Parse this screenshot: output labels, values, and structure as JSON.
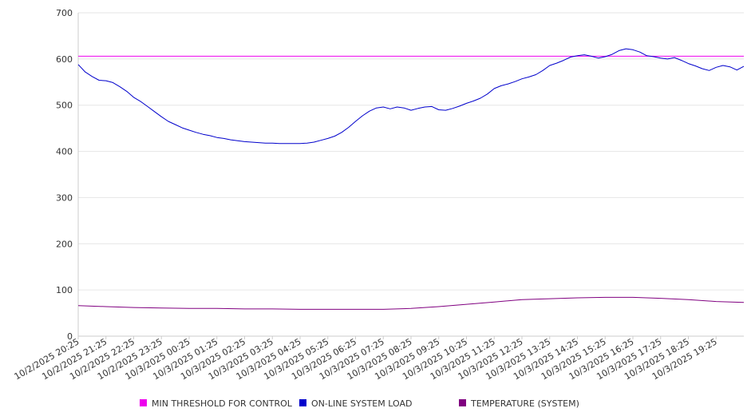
{
  "chart_data": {
    "type": "line",
    "title": "",
    "xlabel": "",
    "ylabel": "",
    "ylim": [
      0,
      700
    ],
    "yticks": [
      0,
      100,
      200,
      300,
      400,
      500,
      600,
      700
    ],
    "grid": true,
    "legend_position": "bottom",
    "x_range": [
      "10/2/2025 20:25",
      "10/3/2025 20:25"
    ],
    "x_tick_labels": [
      "10/2/2025 20:25",
      "10/2/2025 21:25",
      "10/2/2025 22:25",
      "10/2/2025 23:25",
      "10/3/2025 00:25",
      "10/3/2025 01:25",
      "10/3/2025 02:25",
      "10/3/2025 03:25",
      "10/3/2025 04:25",
      "10/3/2025 05:25",
      "10/3/2025 06:25",
      "10/3/2025 07:25",
      "10/3/2025 08:25",
      "10/3/2025 09:25",
      "10/3/2025 10:25",
      "10/3/2025 11:25",
      "10/3/2025 12:25",
      "10/3/2025 13:25",
      "10/3/2025 14:25",
      "10/3/2025 15:25",
      "10/3/2025 16:25",
      "10/3/2025 17:25",
      "10/3/2025 18:25",
      "10/3/2025 19:25"
    ],
    "series": [
      {
        "name": "MIN THRESHOLD FOR CONTROL",
        "color": "#ee00ee",
        "points": [
          [
            "10/2/2025 20:25",
            606
          ],
          [
            "10/3/2025 20:25",
            606
          ]
        ]
      },
      {
        "name": "ON-LINE SYSTEM LOAD",
        "color": "#0000cc",
        "points": [
          [
            "10/2/2025 20:25",
            588
          ],
          [
            "10/2/2025 20:40",
            572
          ],
          [
            "10/2/2025 20:55",
            562
          ],
          [
            "10/2/2025 21:10",
            554
          ],
          [
            "10/2/2025 21:25",
            553
          ],
          [
            "10/2/2025 21:40",
            549
          ],
          [
            "10/2/2025 21:55",
            540
          ],
          [
            "10/2/2025 22:10",
            530
          ],
          [
            "10/2/2025 22:25",
            517
          ],
          [
            "10/2/2025 22:40",
            508
          ],
          [
            "10/2/2025 22:55",
            497
          ],
          [
            "10/2/2025 23:10",
            486
          ],
          [
            "10/2/2025 23:25",
            475
          ],
          [
            "10/2/2025 23:40",
            465
          ],
          [
            "10/2/2025 23:55",
            458
          ],
          [
            "10/3/2025 00:10",
            451
          ],
          [
            "10/3/2025 00:25",
            446
          ],
          [
            "10/3/2025 00:40",
            441
          ],
          [
            "10/3/2025 00:55",
            437
          ],
          [
            "10/3/2025 01:10",
            434
          ],
          [
            "10/3/2025 01:25",
            430
          ],
          [
            "10/3/2025 01:40",
            428
          ],
          [
            "10/3/2025 01:55",
            425
          ],
          [
            "10/3/2025 02:10",
            423
          ],
          [
            "10/3/2025 02:25",
            421
          ],
          [
            "10/3/2025 02:40",
            420
          ],
          [
            "10/3/2025 02:55",
            419
          ],
          [
            "10/3/2025 03:10",
            418
          ],
          [
            "10/3/2025 03:25",
            418
          ],
          [
            "10/3/2025 03:40",
            417
          ],
          [
            "10/3/2025 03:55",
            417
          ],
          [
            "10/3/2025 04:10",
            417
          ],
          [
            "10/3/2025 04:25",
            417
          ],
          [
            "10/3/2025 04:40",
            418
          ],
          [
            "10/3/2025 04:55",
            420
          ],
          [
            "10/3/2025 05:10",
            424
          ],
          [
            "10/3/2025 05:25",
            428
          ],
          [
            "10/3/2025 05:40",
            433
          ],
          [
            "10/3/2025 05:55",
            441
          ],
          [
            "10/3/2025 06:10",
            452
          ],
          [
            "10/3/2025 06:25",
            465
          ],
          [
            "10/3/2025 06:40",
            477
          ],
          [
            "10/3/2025 06:55",
            487
          ],
          [
            "10/3/2025 07:10",
            494
          ],
          [
            "10/3/2025 07:25",
            496
          ],
          [
            "10/3/2025 07:40",
            492
          ],
          [
            "10/3/2025 07:55",
            496
          ],
          [
            "10/3/2025 08:10",
            494
          ],
          [
            "10/3/2025 08:25",
            489
          ],
          [
            "10/3/2025 08:40",
            493
          ],
          [
            "10/3/2025 08:55",
            496
          ],
          [
            "10/3/2025 09:10",
            497
          ],
          [
            "10/3/2025 09:25",
            490
          ],
          [
            "10/3/2025 09:40",
            489
          ],
          [
            "10/3/2025 09:55",
            493
          ],
          [
            "10/3/2025 10:10",
            498
          ],
          [
            "10/3/2025 10:25",
            504
          ],
          [
            "10/3/2025 10:40",
            509
          ],
          [
            "10/3/2025 10:55",
            515
          ],
          [
            "10/3/2025 11:10",
            524
          ],
          [
            "10/3/2025 11:25",
            536
          ],
          [
            "10/3/2025 11:40",
            542
          ],
          [
            "10/3/2025 11:55",
            546
          ],
          [
            "10/3/2025 12:10",
            551
          ],
          [
            "10/3/2025 12:25",
            557
          ],
          [
            "10/3/2025 12:40",
            561
          ],
          [
            "10/3/2025 12:55",
            566
          ],
          [
            "10/3/2025 13:10",
            575
          ],
          [
            "10/3/2025 13:25",
            586
          ],
          [
            "10/3/2025 13:40",
            591
          ],
          [
            "10/3/2025 13:55",
            597
          ],
          [
            "10/3/2025 14:10",
            604
          ],
          [
            "10/3/2025 14:25",
            607
          ],
          [
            "10/3/2025 14:40",
            609
          ],
          [
            "10/3/2025 14:55",
            606
          ],
          [
            "10/3/2025 15:10",
            602
          ],
          [
            "10/3/2025 15:25",
            605
          ],
          [
            "10/3/2025 15:40",
            610
          ],
          [
            "10/3/2025 15:55",
            618
          ],
          [
            "10/3/2025 16:10",
            622
          ],
          [
            "10/3/2025 16:25",
            620
          ],
          [
            "10/3/2025 16:40",
            615
          ],
          [
            "10/3/2025 16:55",
            607
          ],
          [
            "10/3/2025 17:10",
            605
          ],
          [
            "10/3/2025 17:25",
            602
          ],
          [
            "10/3/2025 17:40",
            600
          ],
          [
            "10/3/2025 17:55",
            603
          ],
          [
            "10/3/2025 18:10",
            597
          ],
          [
            "10/3/2025 18:25",
            590
          ],
          [
            "10/3/2025 18:40",
            585
          ],
          [
            "10/3/2025 18:55",
            579
          ],
          [
            "10/3/2025 19:10",
            575
          ],
          [
            "10/3/2025 19:25",
            582
          ],
          [
            "10/3/2025 19:40",
            586
          ],
          [
            "10/3/2025 19:55",
            583
          ],
          [
            "10/3/2025 20:10",
            576
          ],
          [
            "10/3/2025 20:25",
            584
          ]
        ]
      },
      {
        "name": "TEMPERATURE (SYSTEM)",
        "color": "#800080",
        "points": [
          [
            "10/2/2025 20:25",
            66
          ],
          [
            "10/2/2025 21:25",
            64
          ],
          [
            "10/2/2025 22:25",
            62
          ],
          [
            "10/2/2025 23:25",
            61
          ],
          [
            "10/3/2025 00:25",
            60
          ],
          [
            "10/3/2025 01:25",
            60
          ],
          [
            "10/3/2025 02:25",
            59
          ],
          [
            "10/3/2025 03:25",
            59
          ],
          [
            "10/3/2025 04:25",
            58
          ],
          [
            "10/3/2025 05:25",
            58
          ],
          [
            "10/3/2025 06:25",
            58
          ],
          [
            "10/3/2025 07:25",
            58
          ],
          [
            "10/3/2025 08:25",
            60
          ],
          [
            "10/3/2025 09:25",
            64
          ],
          [
            "10/3/2025 10:25",
            69
          ],
          [
            "10/3/2025 11:25",
            74
          ],
          [
            "10/3/2025 12:25",
            79
          ],
          [
            "10/3/2025 13:25",
            81
          ],
          [
            "10/3/2025 14:25",
            83
          ],
          [
            "10/3/2025 15:25",
            84
          ],
          [
            "10/3/2025 16:25",
            84
          ],
          [
            "10/3/2025 17:25",
            82
          ],
          [
            "10/3/2025 18:25",
            79
          ],
          [
            "10/3/2025 19:25",
            75
          ],
          [
            "10/3/2025 20:25",
            73
          ]
        ]
      }
    ]
  }
}
